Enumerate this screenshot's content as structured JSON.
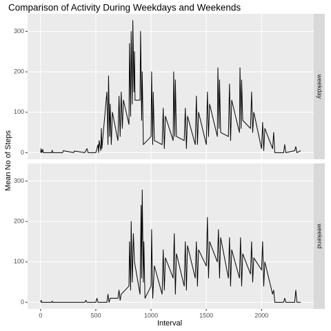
{
  "chart_data": {
    "type": "line",
    "title": "Comparison of Activity During Weekdays and Weekends",
    "xlabel": "Interval",
    "ylabel": "Mean No of Steps",
    "color": "#000000",
    "grid": true,
    "xlim": [
      -117.75,
      2472.75
    ],
    "xticks": [
      0,
      500,
      1000,
      1500,
      2000
    ],
    "ylim": [
      -16.4,
      343.6
    ],
    "yticks": [
      0,
      100,
      200,
      300
    ],
    "series": [
      {
        "name": "weekday",
        "x": [
          0,
          5,
          10,
          20,
          25,
          100,
          105,
          110,
          200,
          205,
          300,
          305,
          400,
          420,
          430,
          500,
          520,
          525,
          530,
          545,
          550,
          555,
          600,
          610,
          615,
          625,
          630,
          640,
          650,
          700,
          710,
          720,
          730,
          740,
          750,
          800,
          805,
          815,
          820,
          830,
          835,
          845,
          850,
          855,
          900,
          905,
          915,
          920,
          930,
          1000,
          1005,
          1015,
          1020,
          1030,
          1100,
          1110,
          1120,
          1130,
          1200,
          1205,
          1215,
          1220,
          1230,
          1300,
          1310,
          1320,
          1330,
          1400,
          1410,
          1420,
          1430,
          1500,
          1510,
          1520,
          1530,
          1600,
          1605,
          1615,
          1620,
          1630,
          1700,
          1710,
          1720,
          1730,
          1800,
          1805,
          1815,
          1820,
          1830,
          1900,
          1910,
          1920,
          1930,
          2000,
          2010,
          2020,
          2030,
          2100,
          2110,
          2120,
          2200,
          2210,
          2220,
          2300,
          2310,
          2320,
          2355
        ],
        "values": [
          0,
          10,
          0,
          8,
          0,
          0,
          6,
          0,
          0,
          5,
          0,
          4,
          0,
          10,
          0,
          0,
          20,
          0,
          30,
          5,
          60,
          10,
          150,
          20,
          190,
          40,
          120,
          20,
          100,
          30,
          140,
          40,
          150,
          60,
          130,
          70,
          270,
          90,
          300,
          120,
          327,
          150,
          250,
          130,
          130,
          300,
          80,
          200,
          20,
          40,
          200,
          20,
          150,
          30,
          20,
          110,
          10,
          90,
          30,
          200,
          40,
          180,
          40,
          30,
          110,
          10,
          90,
          20,
          140,
          20,
          100,
          20,
          150,
          40,
          120,
          40,
          210,
          60,
          180,
          50,
          40,
          170,
          30,
          130,
          50,
          210,
          60,
          180,
          80,
          60,
          150,
          50,
          100,
          10,
          75,
          5,
          60,
          10,
          50,
          0,
          0,
          20,
          0,
          5,
          15,
          0,
          5
        ]
      },
      {
        "name": "weekend",
        "x": [
          0,
          5,
          10,
          100,
          105,
          110,
          200,
          300,
          400,
          410,
          420,
          500,
          510,
          520,
          600,
          610,
          620,
          630,
          700,
          710,
          720,
          730,
          800,
          805,
          815,
          820,
          830,
          840,
          850,
          900,
          910,
          915,
          920,
          930,
          935,
          945,
          1000,
          1005,
          1015,
          1030,
          1100,
          1110,
          1120,
          1130,
          1200,
          1210,
          1220,
          1230,
          1300,
          1310,
          1320,
          1330,
          1400,
          1410,
          1420,
          1430,
          1500,
          1510,
          1520,
          1530,
          1600,
          1610,
          1620,
          1630,
          1700,
          1710,
          1720,
          1730,
          1800,
          1810,
          1820,
          1830,
          1900,
          1910,
          1920,
          1930,
          2000,
          2010,
          2020,
          2030,
          2100,
          2110,
          2120,
          2200,
          2210,
          2220,
          2300,
          2310,
          2320,
          2355
        ],
        "values": [
          0,
          5,
          0,
          0,
          3,
          0,
          0,
          0,
          0,
          5,
          0,
          0,
          10,
          0,
          0,
          20,
          0,
          10,
          10,
          30,
          5,
          20,
          40,
          150,
          30,
          200,
          50,
          170,
          100,
          20,
          240,
          60,
          278,
          50,
          150,
          10,
          40,
          180,
          10,
          90,
          20,
          130,
          30,
          110,
          60,
          170,
          20,
          120,
          40,
          150,
          30,
          140,
          60,
          150,
          40,
          130,
          90,
          210,
          60,
          150,
          100,
          180,
          60,
          160,
          60,
          160,
          40,
          130,
          60,
          160,
          40,
          120,
          70,
          150,
          50,
          110,
          80,
          150,
          40,
          100,
          20,
          30,
          0,
          0,
          10,
          0,
          0,
          30,
          0,
          0
        ]
      }
    ]
  }
}
